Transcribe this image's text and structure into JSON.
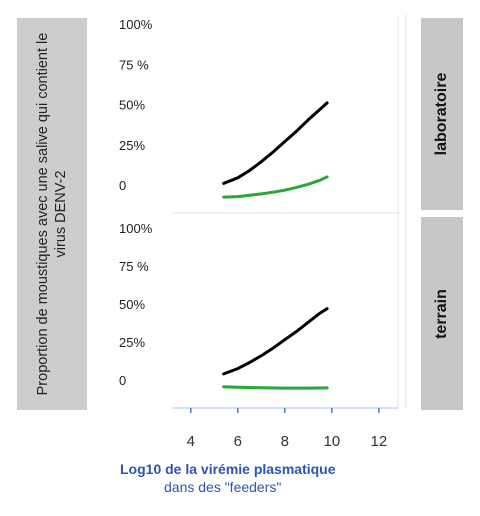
{
  "chart_data": {
    "type": "line",
    "ylabel": "Proportion de moustiques avec une salive qui contient le virus DENV-2",
    "xlabel_line1": "Log10 de la virémie plasmatique",
    "xlabel_line2": "dans des \"feeders\"",
    "x_ticks": [
      "4",
      "6",
      "8",
      "10",
      "12"
    ],
    "x_tick_values": [
      4,
      6,
      8,
      10,
      12
    ],
    "xlim": [
      3.2,
      12.9
    ],
    "ylim": [
      -0.1,
      1.0
    ],
    "grid": false,
    "series_colors": {
      "black": "#000000",
      "green": "#2aa63a"
    },
    "panels": [
      {
        "label": "laboratoire",
        "y_ticks": [
          "100%",
          "75 %",
          "50%",
          "25%",
          "0"
        ],
        "y_tick_values": [
          1.0,
          0.75,
          0.5,
          0.25,
          0.0
        ],
        "series": [
          {
            "color": "#000000",
            "x": [
              5.4,
              6.0,
              6.5,
              7.0,
              7.5,
              8.0,
              8.5,
              9.0,
              9.5,
              9.8
            ],
            "y": [
              0.01,
              0.045,
              0.09,
              0.145,
              0.205,
              0.27,
              0.335,
              0.405,
              0.47,
              0.51
            ]
          },
          {
            "color": "#2aa63a",
            "x": [
              5.4,
              6.0,
              6.5,
              7.0,
              7.5,
              8.0,
              8.5,
              9.0,
              9.5,
              9.8
            ],
            "y": [
              -0.075,
              -0.072,
              -0.064,
              -0.055,
              -0.045,
              -0.032,
              -0.015,
              0.005,
              0.03,
              0.05
            ]
          }
        ]
      },
      {
        "label": "terrain",
        "y_ticks": [
          "100%",
          "75 %",
          "50%",
          "25%",
          "0"
        ],
        "y_tick_values": [
          1.0,
          0.75,
          0.5,
          0.25,
          0.0
        ],
        "series": [
          {
            "color": "#000000",
            "x": [
              5.4,
              6.0,
              6.5,
              7.0,
              7.5,
              8.0,
              8.5,
              9.0,
              9.5,
              9.8
            ],
            "y": [
              0.04,
              0.075,
              0.115,
              0.16,
              0.21,
              0.265,
              0.32,
              0.38,
              0.44,
              0.47
            ]
          },
          {
            "color": "#2aa63a",
            "x": [
              5.4,
              6.0,
              7.0,
              8.0,
              9.0,
              9.8
            ],
            "y": [
              -0.045,
              -0.048,
              -0.051,
              -0.053,
              -0.053,
              -0.052
            ]
          }
        ]
      }
    ]
  }
}
